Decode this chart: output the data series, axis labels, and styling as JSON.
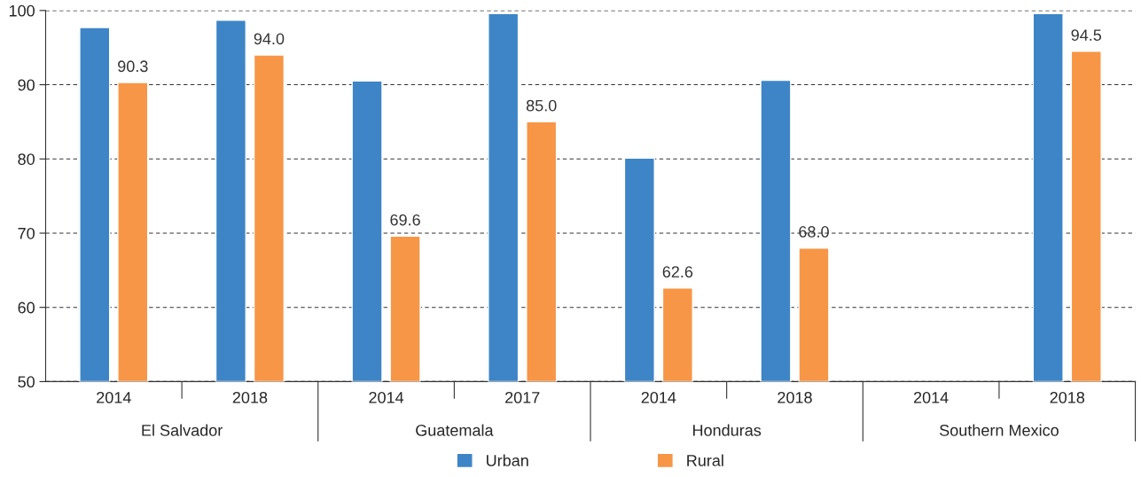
{
  "chart_data": {
    "type": "bar",
    "categories": [
      "2014",
      "2018",
      "2014",
      "2017",
      "2014",
      "2018",
      "2014",
      "2018"
    ],
    "annotations": [
      "El Salvador",
      "Guatemala",
      "Honduras",
      "Southern Mexico"
    ],
    "series": [
      {
        "name": "Urban",
        "color": "#3d85c6",
        "values": [
          97.7,
          98.7,
          90.5,
          99.6,
          80.1,
          90.6,
          null,
          99.6
        ]
      },
      {
        "name": "Rural",
        "color": "#f79646",
        "values": [
          90.3,
          94.0,
          69.6,
          85.0,
          62.6,
          68.0,
          null,
          94.5
        ],
        "value_labels": [
          "90.3",
          "94.0",
          "69.6",
          "85.0",
          "62.6",
          "68.0",
          null,
          "94.5"
        ]
      }
    ],
    "ylim": [
      50,
      100
    ],
    "yticks": [
      50,
      60,
      70,
      80,
      90,
      100
    ],
    "grid": "y",
    "legend": "bottom"
  }
}
